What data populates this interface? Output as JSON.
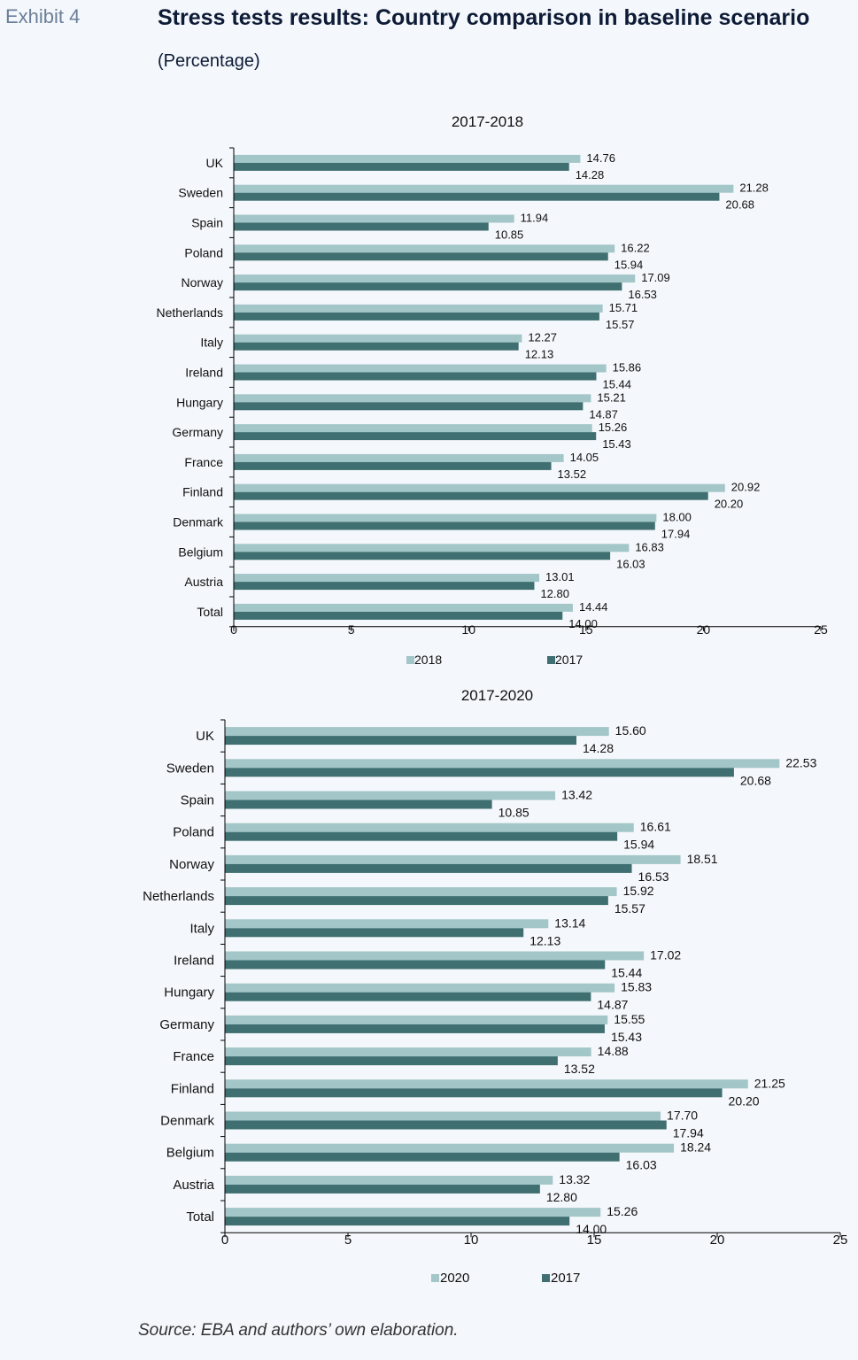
{
  "header": {
    "exhibit": "Exhibit 4",
    "title": "Stress tests results: Country comparison in baseline scenario",
    "subtitle": "(Percentage)"
  },
  "footer": {
    "source": "Source: EBA and authors’ own elaboration."
  },
  "colors": {
    "light_bar": "#a3c6c8",
    "dark_bar": "#3f6f70"
  },
  "chart_data": [
    {
      "type": "bar",
      "orientation": "horizontal",
      "title": "2017-2018",
      "categories": [
        "UK",
        "Sweden",
        "Spain",
        "Poland",
        "Norway",
        "Netherlands",
        "Italy",
        "Ireland",
        "Hungary",
        "Germany",
        "France",
        "Finland",
        "Denmark",
        "Belgium",
        "Austria",
        "Total"
      ],
      "series": [
        {
          "name": "2018",
          "color": "#a3c6c8",
          "values": [
            14.76,
            21.28,
            11.94,
            16.22,
            17.09,
            15.71,
            12.27,
            15.86,
            15.21,
            15.26,
            14.05,
            20.92,
            18.0,
            16.83,
            13.01,
            14.44
          ],
          "labels": [
            "14.76",
            "21.28",
            "11.94",
            "16.22",
            "17.09",
            "15.71",
            "12.27",
            "15.86",
            "15.21",
            "15.26",
            "14.05",
            "20.92",
            "18.00",
            "16.83",
            "13.01",
            "14.44"
          ]
        },
        {
          "name": "2017",
          "color": "#3f6f70",
          "values": [
            14.28,
            20.68,
            10.85,
            15.94,
            16.53,
            15.57,
            12.13,
            15.44,
            14.87,
            15.43,
            13.52,
            20.2,
            17.94,
            16.03,
            12.8,
            14.0
          ],
          "labels": [
            "14.28",
            "20.68",
            "10.85",
            "15.94",
            "16.53",
            "15.57",
            "12.13",
            "15.44",
            "14.87",
            "15.43",
            "13.52",
            "20.20",
            "17.94",
            "16.03",
            "12.80",
            "14.00"
          ]
        }
      ],
      "xlim": [
        0,
        25
      ],
      "xticks": [
        "0",
        "5",
        "10",
        "15",
        "20",
        "25"
      ],
      "legend_position": "bottom",
      "grid": false
    },
    {
      "type": "bar",
      "orientation": "horizontal",
      "title": "2017-2020",
      "categories": [
        "UK",
        "Sweden",
        "Spain",
        "Poland",
        "Norway",
        "Netherlands",
        "Italy",
        "Ireland",
        "Hungary",
        "Germany",
        "France",
        "Finland",
        "Denmark",
        "Belgium",
        "Austria",
        "Total"
      ],
      "series": [
        {
          "name": "2020",
          "color": "#a3c6c8",
          "values": [
            15.6,
            22.53,
            13.42,
            16.61,
            18.51,
            15.92,
            13.14,
            17.02,
            15.83,
            15.55,
            14.88,
            21.25,
            17.7,
            18.24,
            13.32,
            15.26
          ],
          "labels": [
            "15.60",
            "22.53",
            "13.42",
            "16.61",
            "18.51",
            "15.92",
            "13.14",
            "17.02",
            "15.83",
            "15.55",
            "14.88",
            "21.25",
            "17.70",
            "18.24",
            "13.32",
            "15.26"
          ]
        },
        {
          "name": "2017",
          "color": "#3f6f70",
          "values": [
            14.28,
            20.68,
            10.85,
            15.94,
            16.53,
            15.57,
            12.13,
            15.44,
            14.87,
            15.43,
            13.52,
            20.2,
            17.94,
            16.03,
            12.8,
            14.0
          ],
          "labels": [
            "14.28",
            "20.68",
            "10.85",
            "15.94",
            "16.53",
            "15.57",
            "12.13",
            "15.44",
            "14.87",
            "15.43",
            "13.52",
            "20.20",
            "17.94",
            "16.03",
            "12.80",
            "14.00"
          ]
        }
      ],
      "xlim": [
        0,
        25
      ],
      "xticks": [
        "0",
        "5",
        "10",
        "15",
        "20",
        "25"
      ],
      "legend_position": "bottom",
      "grid": false
    }
  ]
}
